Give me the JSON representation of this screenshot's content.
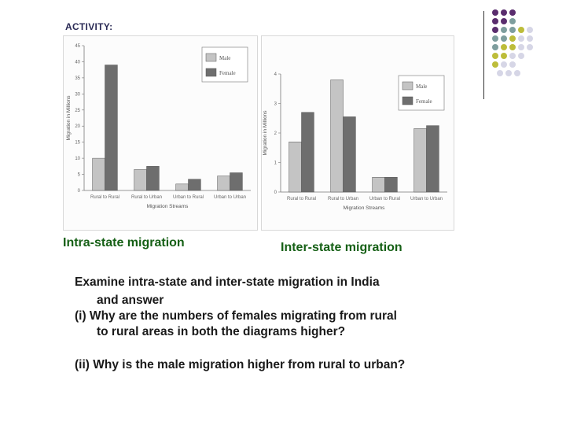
{
  "activity_label": "ACTIVITY:",
  "captions": {
    "intra": "Intra-state migration",
    "inter": "Inter-state migration"
  },
  "questions": {
    "line1": "Examine intra-state and inter-state migration in India",
    "line2": "and answer",
    "line3": "(i)  Why are the numbers of females migrating from rural",
    "line4": "to rural areas in both the diagrams higher?",
    "line5": "(ii) Why is the male migration higher from rural to urban?"
  },
  "colors": {
    "male": "#c4c4c4",
    "female": "#6e6e6e",
    "caption_green": "#166016",
    "dot_purple": "#5a2d6e",
    "dot_teal": "#7e9e9e",
    "dot_olive": "#bdbd3a",
    "dot_lavender": "#d6d6e6"
  },
  "chart_data": [
    {
      "type": "bar",
      "categories": [
        "Rural to Rural",
        "Rural to Urban",
        "Urban to Rural",
        "Urban to Urban"
      ],
      "series": [
        {
          "name": "Male",
          "values": [
            10,
            6.5,
            2,
            4.5
          ]
        },
        {
          "name": "Female",
          "values": [
            39,
            7.5,
            3.5,
            5.5
          ]
        }
      ],
      "ylim": [
        0,
        45
      ],
      "yticks": [
        0,
        5,
        10,
        15,
        20,
        25,
        30,
        35,
        40,
        45
      ],
      "xlabel": "Migration Streams",
      "ylabel": "Migration in Millions",
      "legend": "top-right"
    },
    {
      "type": "bar",
      "categories": [
        "Rural to Rural",
        "Rural to Urban",
        "Urban to Rural",
        "Urban to Urban"
      ],
      "series": [
        {
          "name": "Male",
          "values": [
            1.7,
            3.8,
            0.5,
            2.15
          ]
        },
        {
          "name": "Female",
          "values": [
            2.7,
            2.55,
            0.5,
            2.25
          ]
        }
      ],
      "ylim": [
        0,
        4
      ],
      "yticks": [
        0,
        1,
        2,
        3,
        4
      ],
      "xlabel": "Migration Streams",
      "ylabel": "Migration in Millions",
      "legend": "top-right"
    }
  ]
}
